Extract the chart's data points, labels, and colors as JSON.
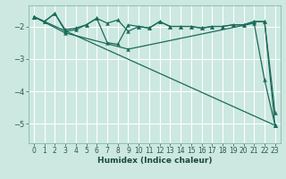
{
  "background_color": "#cce8e0",
  "grid_color": "#aad4cc",
  "line_color": "#1a6b5a",
  "xlabel": "Humidex (Indice chaleur)",
  "xlim": [
    -0.5,
    23.5
  ],
  "ylim": [
    -5.6,
    -1.35
  ],
  "yticks": [
    -5,
    -4,
    -3,
    -2
  ],
  "xticks": [
    0,
    1,
    2,
    3,
    4,
    5,
    6,
    7,
    8,
    9,
    10,
    11,
    12,
    13,
    14,
    15,
    16,
    17,
    18,
    19,
    20,
    21,
    22,
    23
  ],
  "series": [
    {
      "x": [
        0,
        1,
        2,
        3,
        4,
        5,
        6,
        7,
        8,
        9,
        10,
        11,
        12,
        13,
        14,
        15,
        16,
        17,
        18,
        19,
        20,
        21,
        22,
        23
      ],
      "y": [
        -1.7,
        -1.85,
        -1.6,
        -2.15,
        -2.1,
        -1.95,
        -1.75,
        -1.9,
        -1.8,
        -2.15,
        -2.0,
        -2.05,
        -1.85,
        -2.0,
        -2.0,
        -2.0,
        -2.05,
        -2.0,
        -2.0,
        -1.95,
        -1.95,
        -1.85,
        -1.85,
        -4.65
      ]
    },
    {
      "x": [
        0,
        1,
        2,
        3,
        4,
        5,
        6,
        7,
        8,
        9,
        10,
        11,
        12,
        13,
        14,
        15,
        16,
        17,
        18,
        19,
        20,
        21,
        22,
        23
      ],
      "y": [
        -1.7,
        -1.85,
        -1.6,
        -2.1,
        -2.05,
        -1.95,
        -1.75,
        -2.5,
        -2.55,
        -1.95,
        -2.0,
        -2.05,
        -1.85,
        -2.0,
        -2.0,
        -2.0,
        -2.05,
        -2.0,
        -2.0,
        -1.95,
        -1.95,
        -1.85,
        -1.85,
        -5.05
      ]
    },
    {
      "x": [
        0,
        3,
        9,
        21,
        22,
        23
      ],
      "y": [
        -1.7,
        -2.2,
        -2.7,
        -1.9,
        -3.65,
        -5.05
      ]
    },
    {
      "x": [
        0,
        23
      ],
      "y": [
        -1.7,
        -5.05
      ]
    }
  ],
  "marker": "^",
  "markersize": 2.8,
  "linewidth": 0.9,
  "tick_fontsize": 5.5,
  "xlabel_fontsize": 6.5
}
